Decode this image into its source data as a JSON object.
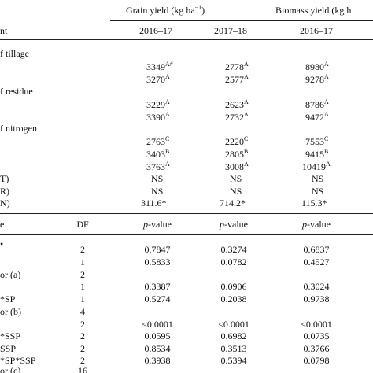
{
  "header": {
    "grain_title": "Grain yield (kg ha",
    "grain_title_sup": "−1",
    "grain_title_end": ")",
    "biomass_title": "Biomass yield (kg h",
    "row_label_stub": "nt",
    "year_grain_1": "2016–17",
    "year_grain_2": "2017–18",
    "year_biomass_1": "2016–17"
  },
  "groups": [
    {
      "label": "f tillage",
      "rows": [
        {
          "g1": "3349",
          "g1s": "A#",
          "g2": "2778",
          "g2s": "A",
          "b1": "8980",
          "b1s": "A"
        },
        {
          "g1": "3270",
          "g1s": "A",
          "g2": "2577",
          "g2s": "A",
          "b1": "9278",
          "b1s": "A"
        }
      ]
    },
    {
      "label": "f residue",
      "rows": [
        {
          "g1": "3229",
          "g1s": "A",
          "g2": "2623",
          "g2s": "A",
          "b1": "8786",
          "b1s": "A"
        },
        {
          "g1": "3390",
          "g1s": "A",
          "g2": "2732",
          "g2s": "A",
          "b1": "9472",
          "b1s": "A"
        }
      ]
    },
    {
      "label": "f nitrogen",
      "rows": [
        {
          "g1": "2763",
          "g1s": "C",
          "g2": "2220",
          "g2s": "C",
          "b1": "7553",
          "b1s": "C"
        },
        {
          "g1": "3403",
          "g1s": "B",
          "g2": "2805",
          "g2s": "B",
          "b1": "9415",
          "b1s": "B"
        },
        {
          "g1": "3763",
          "g1s": "A",
          "g2": "3008",
          "g2s": "A",
          "b1": "10419",
          "b1s": "A"
        }
      ]
    }
  ],
  "lsd_rows": [
    {
      "label": "T)",
      "g1": "NS",
      "g2": "NS",
      "b1": "NS"
    },
    {
      "label": "R)",
      "g1": "NS",
      "g2": "NS",
      "b1": "NS"
    },
    {
      "label": "N)",
      "g1": "311.6*",
      "g2": "714.2*",
      "b1": "115.3*"
    }
  ],
  "anova_header": {
    "source": "e",
    "df": "DF",
    "p_italic": "p",
    "p_rest": "-value"
  },
  "anova_rows": [
    {
      "label": "•",
      "df": "2",
      "p1": "0.7847",
      "p2": "0.3274",
      "p3": "0.6837"
    },
    {
      "label": "",
      "df": "1",
      "p1": "0.5833",
      "p2": "0.0782",
      "p3": "0.4527"
    },
    {
      "label": "or (a)",
      "df": "2",
      "p1": "",
      "p2": "",
      "p3": ""
    },
    {
      "label": "",
      "df": "1",
      "p1": "0.3387",
      "p2": "0.0906",
      "p3": "0.3024"
    },
    {
      "label": "*SP",
      "df": "1",
      "p1": "0.5274",
      "p2": "0.2038",
      "p3": "0.9738"
    },
    {
      "label": "or (b)",
      "df": "4",
      "p1": "",
      "p2": "",
      "p3": ""
    },
    {
      "label": "",
      "df": "2",
      "p1": "<0.0001",
      "p2": "<0.0001",
      "p3": "<0.0001"
    },
    {
      "label": "*SSP",
      "df": "2",
      "p1": "0.0595",
      "p2": "0.6982",
      "p3": "0.0735"
    },
    {
      "label": "SSP",
      "df": "2",
      "p1": "0.8534",
      "p2": "0.3513",
      "p3": "0.3766"
    },
    {
      "label": "*SP*SSP",
      "df": "2",
      "p1": "0.3938",
      "p2": "0.5394",
      "p3": "0.0798"
    },
    {
      "label": "or (c)",
      "df": "16",
      "p1": "",
      "p2": "",
      "p3": ""
    }
  ]
}
